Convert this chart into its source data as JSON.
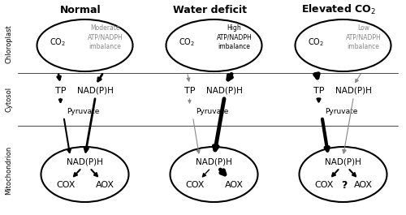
{
  "columns": [
    {
      "title": "Normal",
      "imbalance_text": "Moderate\nATP/NADPH\nimbalance",
      "imbalance_color": "#888888",
      "co2_arrow_lw": 2.0,
      "co2_arrow_color": "#000000",
      "nadph_export_lw": 2.0,
      "nadph_export_color": "#000000",
      "tp_arrow_lw": 1.5,
      "tp_arrow_color": "#000000",
      "pyruvate_arrow_lw": 1.5,
      "pyruvate_arrow_color": "#000000",
      "nadph_direct_lw": 2.0,
      "nadph_direct_color": "#000000",
      "cox_arrow_lw": 1.5,
      "cox_arrow_color": "#000000",
      "aox_arrow_lw": 1.5,
      "aox_arrow_color": "#000000",
      "question_mark": false
    },
    {
      "title": "Water deficit",
      "imbalance_text": "High\nATP/NADPH\nimbalance",
      "imbalance_color": "#000000",
      "co2_arrow_lw": 0.8,
      "co2_arrow_color": "#888888",
      "nadph_export_lw": 3.5,
      "nadph_export_color": "#000000",
      "tp_arrow_lw": 0.8,
      "tp_arrow_color": "#888888",
      "pyruvate_arrow_lw": 0.8,
      "pyruvate_arrow_color": "#888888",
      "nadph_direct_lw": 3.5,
      "nadph_direct_color": "#000000",
      "cox_arrow_lw": 1.0,
      "cox_arrow_color": "#000000",
      "aox_arrow_lw": 3.5,
      "aox_arrow_color": "#000000",
      "question_mark": false
    },
    {
      "title": "Elevated CO$_2$",
      "imbalance_text": "Low\nATP/NADPH\nimbalance",
      "imbalance_color": "#888888",
      "co2_arrow_lw": 3.5,
      "co2_arrow_color": "#000000",
      "nadph_export_lw": 0.8,
      "nadph_export_color": "#888888",
      "tp_arrow_lw": 2.0,
      "tp_arrow_color": "#000000",
      "pyruvate_arrow_lw": 3.0,
      "pyruvate_arrow_color": "#000000",
      "nadph_direct_lw": 0.8,
      "nadph_direct_color": "#888888",
      "cox_arrow_lw": 1.5,
      "cox_arrow_color": "#000000",
      "aox_arrow_lw": 1.5,
      "aox_arrow_color": "#000000",
      "question_mark": true
    }
  ],
  "background_color": "#ffffff",
  "fig_width": 5.0,
  "fig_height": 2.65,
  "dpi": 100
}
